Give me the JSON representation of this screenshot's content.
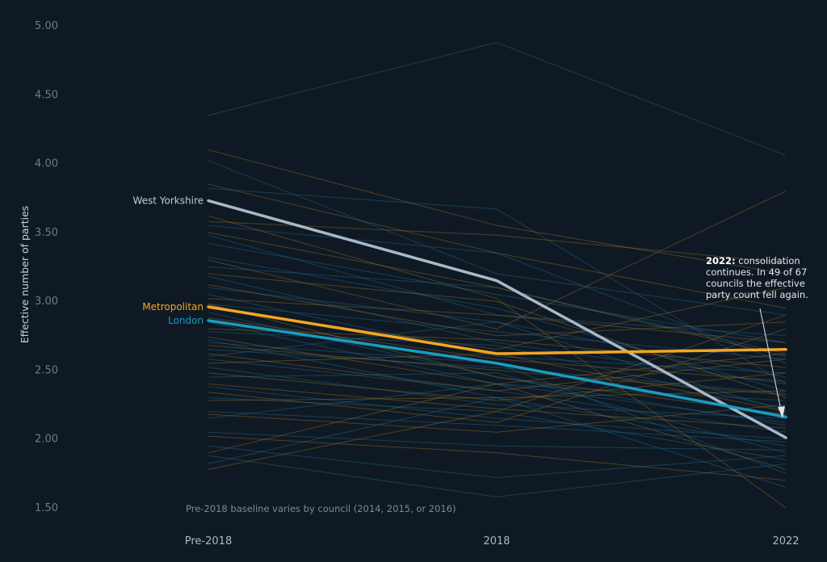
{
  "chart_data": {
    "type": "line",
    "title": "",
    "xlabel": "",
    "ylabel": "Effective number of parties",
    "categories": [
      "Pre-2018",
      "2018",
      "2022"
    ],
    "ylim": [
      1.5,
      5.0
    ],
    "yticks": [
      "1.50",
      "2.00",
      "2.50",
      "3.00",
      "3.50",
      "4.00",
      "4.50",
      "5.00"
    ],
    "grid": false,
    "legend": "inline labels at left",
    "series": [
      {
        "name": "West Yorkshire",
        "values": [
          3.73,
          3.15,
          2.01
        ],
        "color": "#a9b8c9"
      },
      {
        "name": "Metropolitan",
        "values": [
          2.96,
          2.62,
          2.65
        ],
        "color": "#f5a623"
      },
      {
        "name": "London",
        "values": [
          2.86,
          2.55,
          2.16
        ],
        "color": "#1a9bc2"
      }
    ],
    "background_councils_blue": [
      [
        4.35,
        4.88,
        4.06
      ],
      [
        4.02,
        3.2,
        2.9
      ],
      [
        3.82,
        3.67,
        2.4
      ],
      [
        3.55,
        3.35,
        2.55
      ],
      [
        3.42,
        3.05,
        2.7
      ],
      [
        3.32,
        2.95,
        2.35
      ],
      [
        3.25,
        3.1,
        2.62
      ],
      [
        3.18,
        2.7,
        2.4
      ],
      [
        3.1,
        2.85,
        2.2
      ],
      [
        3.05,
        2.6,
        2.48
      ],
      [
        2.98,
        2.78,
        2.58
      ],
      [
        2.92,
        2.45,
        2.1
      ],
      [
        2.85,
        2.4,
        2.28
      ],
      [
        2.78,
        2.68,
        2.22
      ],
      [
        2.72,
        2.3,
        1.95
      ],
      [
        2.65,
        2.52,
        2.33
      ],
      [
        2.58,
        2.35,
        2.05
      ],
      [
        2.52,
        2.25,
        2.15
      ],
      [
        2.45,
        2.48,
        1.9
      ],
      [
        2.38,
        2.15,
        2.0
      ],
      [
        2.3,
        2.2,
        1.85
      ],
      [
        2.2,
        2.1,
        1.98
      ],
      [
        2.15,
        2.4,
        2.12
      ],
      [
        2.05,
        1.95,
        1.92
      ],
      [
        1.95,
        1.72,
        1.88
      ],
      [
        1.88,
        1.58,
        1.82
      ],
      [
        1.82,
        2.3,
        1.65
      ],
      [
        2.6,
        2.85,
        2.45
      ],
      [
        3.48,
        2.9,
        2.75
      ],
      [
        2.7,
        2.55,
        1.75
      ]
    ],
    "background_councils_orange": [
      [
        4.1,
        3.55,
        3.2
      ],
      [
        3.85,
        3.35,
        2.95
      ],
      [
        3.58,
        3.48,
        3.28
      ],
      [
        3.5,
        3.1,
        2.6
      ],
      [
        3.3,
        2.8,
        3.8
      ],
      [
        3.2,
        3.0,
        2.3
      ],
      [
        3.12,
        2.75,
        2.85
      ],
      [
        3.02,
        2.9,
        2.7
      ],
      [
        2.95,
        2.65,
        3.1
      ],
      [
        2.88,
        2.58,
        2.42
      ],
      [
        2.8,
        2.72,
        2.52
      ],
      [
        2.74,
        2.4,
        2.62
      ],
      [
        2.68,
        2.5,
        2.32
      ],
      [
        2.62,
        2.35,
        2.58
      ],
      [
        2.55,
        2.62,
        2.2
      ],
      [
        2.48,
        2.28,
        2.48
      ],
      [
        2.4,
        2.22,
        2.08
      ],
      [
        2.28,
        2.3,
        2.35
      ],
      [
        2.18,
        2.05,
        2.25
      ],
      [
        2.02,
        1.9,
        1.7
      ],
      [
        1.9,
        2.4,
        1.78
      ],
      [
        1.78,
        2.2,
        2.9
      ],
      [
        3.62,
        3.02,
        1.5
      ],
      [
        2.98,
        2.45,
        2.18
      ],
      [
        2.34,
        2.12,
        2.8
      ]
    ],
    "annotation": {
      "bold": "2022:",
      "lines": [
        " consolidation",
        "continues. In 49 of 67",
        "councils the effective",
        "party count fell again."
      ]
    },
    "note": "Pre-2018 baseline varies by council (2014, 2015, or 2016)"
  }
}
